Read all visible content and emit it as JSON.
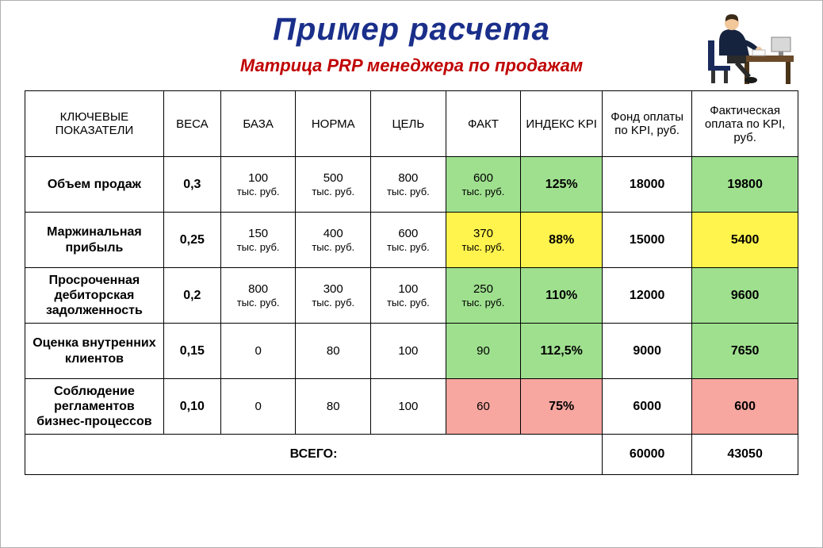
{
  "title": "Пример расчета",
  "subtitle": "Матрица PRP менеджера по продажам",
  "colors": {
    "title": "#1a2f8a",
    "subtitle": "#c00000",
    "green": "#9fe08f",
    "yellow": "#fff34d",
    "red": "#f7a6a0",
    "border": "#000000",
    "background": "#ffffff"
  },
  "columns": [
    "КЛЮЧЕВЫЕ ПОКАЗАТЕЛИ",
    "ВЕСА",
    "БАЗА",
    "НОРМА",
    "ЦЕЛЬ",
    "ФАКТ",
    "ИНДЕКС KPI",
    "Фонд оплаты по KPI, руб.",
    "Фактическая оплата по KPI, руб."
  ],
  "unit": "тыс. руб.",
  "rows": [
    {
      "name": "Объем продаж",
      "weight": "0,3",
      "base": "100",
      "norm": "500",
      "target": "800",
      "fact": "600",
      "show_unit": true,
      "index": "125%",
      "fund": "18000",
      "pay": "19800",
      "fact_color": "green",
      "index_color": "green",
      "pay_color": "green"
    },
    {
      "name": "Маржинальная прибыль",
      "weight": "0,25",
      "base": "150",
      "norm": "400",
      "target": "600",
      "fact": "370",
      "show_unit": true,
      "index": "88%",
      "fund": "15000",
      "pay": "5400",
      "fact_color": "yellow",
      "index_color": "yellow",
      "pay_color": "yellow"
    },
    {
      "name": "Просроченная дебиторская задолженность",
      "weight": "0,2",
      "base": "800",
      "norm": "300",
      "target": "100",
      "fact": "250",
      "show_unit": true,
      "index": "110%",
      "fund": "12000",
      "pay": "9600",
      "fact_color": "green",
      "index_color": "green",
      "pay_color": "green"
    },
    {
      "name": "Оценка внутренних клиентов",
      "weight": "0,15",
      "base": "0",
      "norm": "80",
      "target": "100",
      "fact": "90",
      "show_unit": false,
      "index": "112,5%",
      "fund": "9000",
      "pay": "7650",
      "fact_color": "green",
      "index_color": "green",
      "pay_color": "green"
    },
    {
      "name": "Соблюдение регламентов бизнес-процессов",
      "weight": "0,10",
      "base": "0",
      "norm": "80",
      "target": "100",
      "fact": "60",
      "show_unit": false,
      "index": "75%",
      "fund": "6000",
      "pay": "600",
      "fact_color": "red",
      "index_color": "red",
      "pay_color": "red"
    }
  ],
  "total": {
    "label": "ВСЕГО:",
    "fund": "60000",
    "pay": "43050"
  }
}
